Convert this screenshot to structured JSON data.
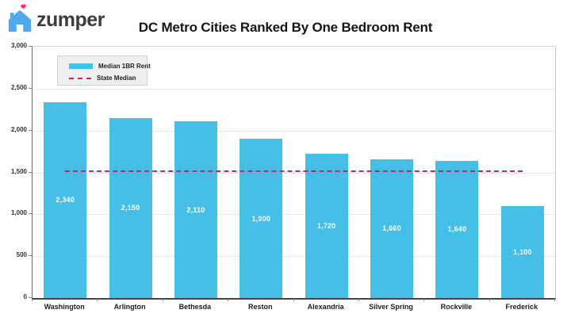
{
  "logo": {
    "text": "zumper",
    "house_color": "#4fa9ec",
    "heart_color": "#ff2d6c"
  },
  "chart_data": {
    "type": "bar",
    "title": "DC Metro Cities Ranked By One Bedroom Rent",
    "series_name": "Median 1BR Rent",
    "categories": [
      "Washington",
      "Arlington",
      "Bethesda",
      "Reston",
      "Alexandria",
      "Silver Spring",
      "Rockville",
      "Frederick"
    ],
    "values": [
      2340,
      2150,
      2110,
      1900,
      1720,
      1660,
      1640,
      1100
    ],
    "value_labels": [
      "2,340",
      "2,150",
      "2,110",
      "1,900",
      "1,720",
      "1,660",
      "1,640",
      "1,100"
    ],
    "ylim": [
      0,
      3000
    ],
    "yticks": [
      {
        "value": 3000,
        "label": "3,000"
      },
      {
        "value": 2500,
        "label": "2,500"
      },
      {
        "value": 2000,
        "label": "2,000"
      },
      {
        "value": 1500,
        "label": "1,500"
      },
      {
        "value": 1000,
        "label": "1,000"
      },
      {
        "value": 500,
        "label": "500"
      },
      {
        "value": 0,
        "label": "0"
      }
    ],
    "state_median": {
      "label": "State Median",
      "approx_value": 1515
    },
    "grid": true,
    "legend_position": "top-left",
    "colors": {
      "bar": "#45bee8",
      "bar_value_text": "#ffffff",
      "median_line": "#cc2266"
    }
  }
}
